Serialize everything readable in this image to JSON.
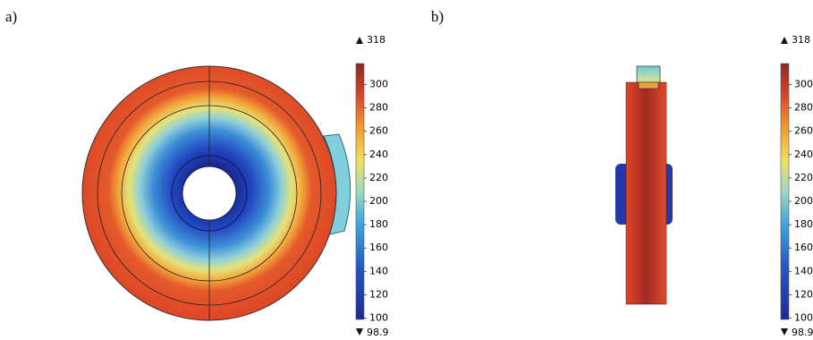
{
  "panels": [
    {
      "label": "a)",
      "colorbar": {
        "max": 318,
        "min": 98.9,
        "ticks": [
          100,
          120,
          140,
          160,
          180,
          200,
          220,
          240,
          260,
          280,
          300
        ]
      }
    },
    {
      "label": "b)",
      "colorbar": {
        "max": 318,
        "min": 98.9,
        "ticks": [
          100,
          120,
          140,
          160,
          180,
          200,
          220,
          240,
          260,
          280,
          300
        ]
      }
    }
  ]
}
